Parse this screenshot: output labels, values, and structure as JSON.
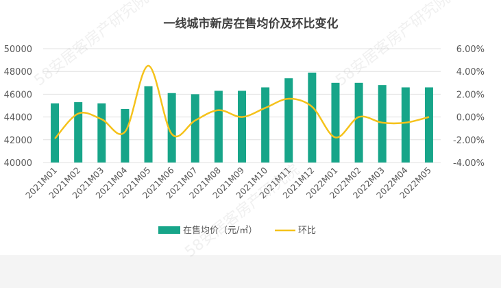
{
  "chart_data": {
    "type": "bar",
    "title": "一线城市新房在售均价及环比变化",
    "categories": [
      "2021M01",
      "2021M02",
      "2021M03",
      "2021M04",
      "2021M05",
      "2021M06",
      "2021M07",
      "2021M08",
      "2021M09",
      "2021M10",
      "2021M11",
      "2021M12",
      "2022M01",
      "2022M02",
      "2022M03",
      "2022M04",
      "2022M05"
    ],
    "series": [
      {
        "name": "在售均价（元/㎡）",
        "type": "bar",
        "axis": "left",
        "values": [
          45200,
          45300,
          45200,
          44700,
          46700,
          46100,
          46000,
          46300,
          46300,
          46600,
          47400,
          47900,
          47000,
          47000,
          46800,
          46600,
          46600
        ]
      },
      {
        "name": "环比",
        "type": "line",
        "axis": "right",
        "unit": "%",
        "values": [
          -1.9,
          0.3,
          -0.2,
          -1.3,
          4.5,
          -1.5,
          -0.3,
          0.6,
          0.0,
          0.8,
          1.6,
          0.9,
          -1.8,
          0.0,
          -0.5,
          -0.5,
          0.0
        ]
      }
    ],
    "yleft": {
      "ylim": [
        40000,
        50000
      ],
      "ticks": [
        "40000",
        "42000",
        "44000",
        "46000",
        "48000",
        "50000"
      ]
    },
    "yright": {
      "ylim": [
        -4,
        6
      ],
      "ticks": [
        "-4.00%",
        "-2.00%",
        "0.00%",
        "2.00%",
        "4.00%",
        "6.00%"
      ]
    },
    "grid": true,
    "legend": "bottom",
    "colors": {
      "bar": "#17a589",
      "line": "#f5c21b",
      "grid": "#e0e0e0",
      "text": "#595959",
      "title": "#404040"
    }
  },
  "watermark": "58安居客房产研究院"
}
